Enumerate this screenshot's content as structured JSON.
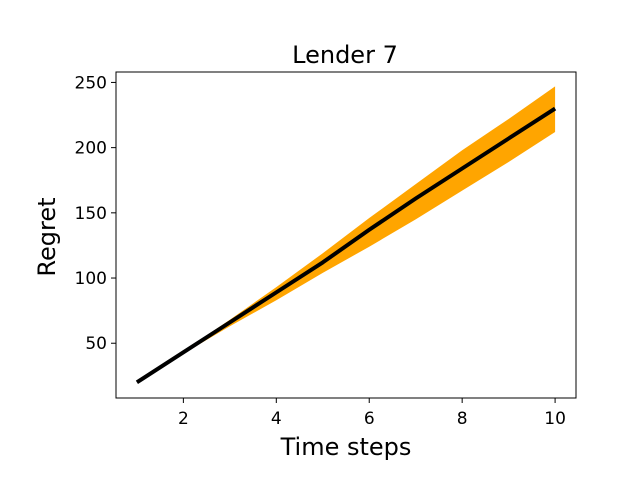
{
  "chart_data": {
    "type": "line",
    "title": "Lender 7",
    "xlabel": "Time steps",
    "ylabel": "Regret",
    "xlim": [
      0.55,
      10.45
    ],
    "ylim": [
      8,
      258
    ],
    "xticks": [
      2,
      4,
      6,
      8,
      10
    ],
    "yticks": [
      50,
      100,
      150,
      200,
      250
    ],
    "grid": false,
    "legend": "none",
    "series": [
      {
        "x": [
          1,
          2,
          3,
          4,
          5,
          6,
          7,
          8,
          9,
          10
        ],
        "values": [
          20,
          43,
          66,
          89,
          112,
          137,
          161,
          184,
          207,
          230
        ],
        "band_lower": [
          20,
          42,
          63,
          83,
          104,
          124,
          145,
          167,
          189,
          212
        ],
        "band_upper": [
          20,
          44,
          68,
          93,
          119,
          146,
          172,
          198,
          222,
          247
        ],
        "line_color": "#000000",
        "band_color": "#FFA500"
      }
    ]
  }
}
